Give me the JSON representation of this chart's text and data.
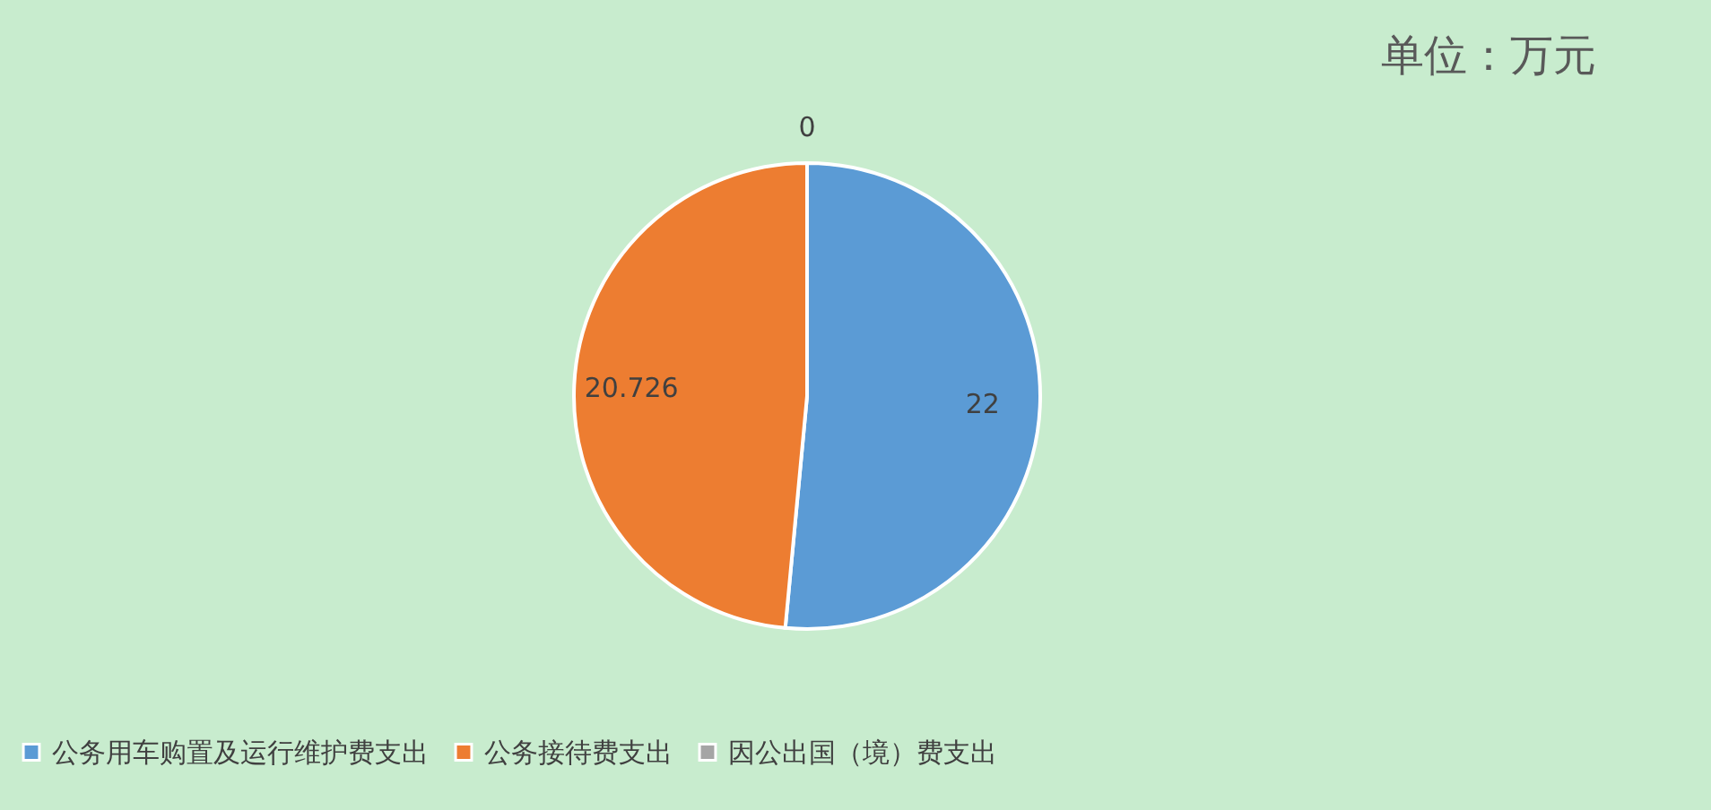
{
  "chart_data": {
    "type": "pie",
    "categories": [
      "公务用车购置及运行维护费支出",
      "公务接待费支出",
      "因公出国（境）费支出"
    ],
    "values": [
      22,
      20.726,
      0
    ],
    "colors": [
      "#5b9bd5",
      "#ed7d31",
      "#a5a5a5"
    ],
    "value_labels": [
      "22",
      "20.726",
      "0"
    ],
    "legend": "bottom",
    "annotations": [
      "单位：万元"
    ]
  }
}
